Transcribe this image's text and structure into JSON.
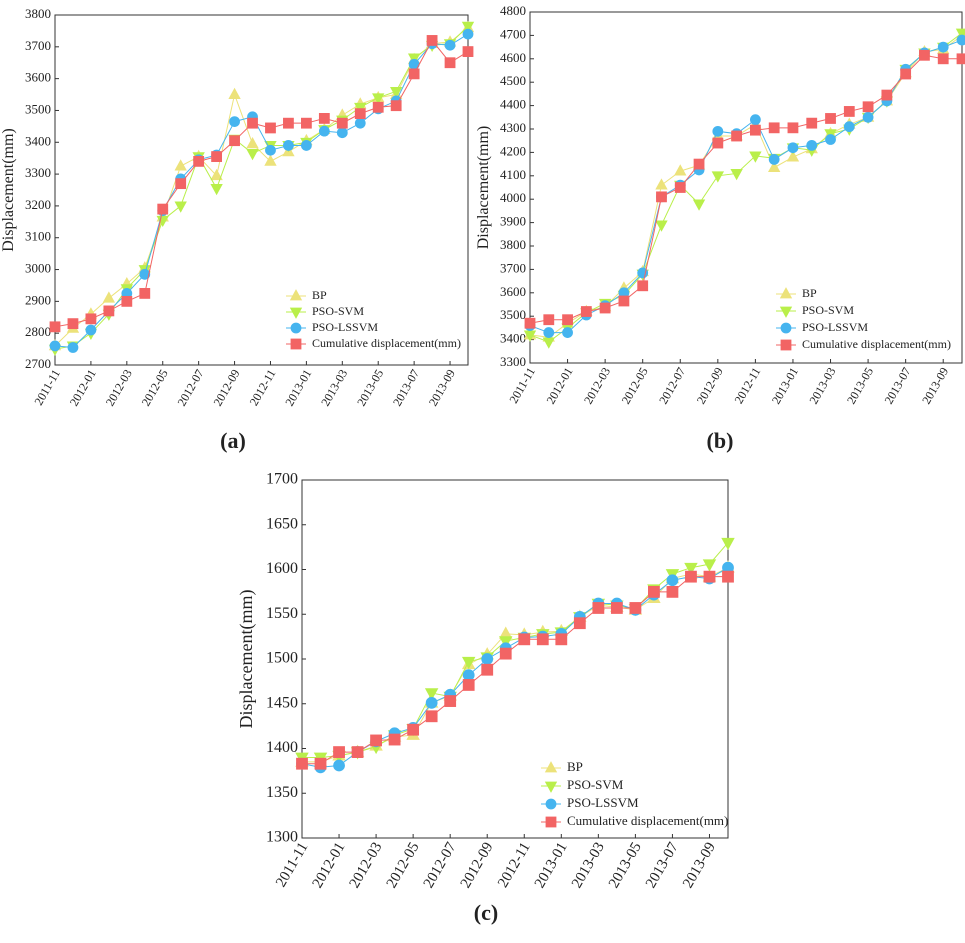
{
  "chart_data": [
    {
      "type": "line",
      "caption": "(a)",
      "y_label": "Displacement(mm)",
      "categories": [
        "2011-11",
        null,
        "2012-01",
        null,
        "2012-03",
        null,
        "2012-05",
        null,
        "2012-07",
        null,
        "2012-09",
        null,
        "2012-11",
        null,
        "2013-01",
        null,
        "2013-03",
        null,
        "2013-05",
        null,
        "2013-07",
        null,
        "2013-09",
        null
      ],
      "ylim": [
        2700,
        3800
      ],
      "yticks": [
        2700,
        2800,
        2900,
        3000,
        3100,
        3200,
        3300,
        3400,
        3500,
        3600,
        3700,
        3800
      ],
      "legend": "lower right",
      "series": [
        {
          "name": "BP",
          "color": "#ece27a",
          "marker": "triangle-up",
          "values": [
            2760,
            2815,
            2860,
            2910,
            2955,
            3005,
            3165,
            3325,
            3355,
            3295,
            3550,
            3395,
            3340,
            3370,
            3405,
            3440,
            3485,
            3520,
            3540,
            3550,
            3660,
            3710,
            3715,
            3760
          ]
        },
        {
          "name": "PSO-SVM",
          "color": "#b9ef4a",
          "marker": "triangle-down",
          "values": [
            2750,
            2760,
            2800,
            2860,
            2940,
            3000,
            3155,
            3200,
            3355,
            3255,
            3410,
            3365,
            3390,
            3390,
            3400,
            3440,
            3470,
            3510,
            3540,
            3560,
            3665,
            3705,
            3710,
            3765
          ]
        },
        {
          "name": "PSO-LSSVM",
          "color": "#45b4ef",
          "marker": "circle",
          "values": [
            2760,
            2755,
            2810,
            2870,
            2925,
            2985,
            3185,
            3285,
            3345,
            3360,
            3465,
            3480,
            3375,
            3390,
            3390,
            3435,
            3430,
            3460,
            3505,
            3530,
            3645,
            3710,
            3705,
            3740
          ]
        },
        {
          "name": "Cumulative displacement(mm)",
          "color": "#f26464",
          "marker": "square",
          "values": [
            2820,
            2830,
            2845,
            2870,
            2900,
            2925,
            3190,
            3270,
            3340,
            3355,
            3405,
            3460,
            3445,
            3460,
            3460,
            3475,
            3460,
            3490,
            3510,
            3515,
            3615,
            3720,
            3650,
            3685
          ]
        }
      ]
    },
    {
      "type": "line",
      "caption": "(b)",
      "y_label": "Displacement(mm)",
      "categories": [
        "2011-11",
        null,
        "2012-01",
        null,
        "2012-03",
        null,
        "2012-05",
        null,
        "2012-07",
        null,
        "2012-09",
        null,
        "2012-11",
        null,
        "2013-01",
        null,
        "2013-03",
        null,
        "2013-05",
        null,
        "2013-07",
        null,
        "2013-09",
        null
      ],
      "ylim": [
        3300,
        4800
      ],
      "yticks": [
        3300,
        3400,
        3500,
        3600,
        3700,
        3800,
        3900,
        4000,
        4100,
        4200,
        4300,
        4400,
        4500,
        4600,
        4700,
        4800
      ],
      "legend": "lower right",
      "series": [
        {
          "name": "BP",
          "color": "#ece27a",
          "marker": "triangle-up",
          "values": [
            3420,
            3410,
            3470,
            3520,
            3540,
            3620,
            3690,
            4060,
            4120,
            4145,
            4270,
            4270,
            4320,
            4135,
            4180,
            4215,
            4280,
            4320,
            4350,
            4420,
            4540,
            4630,
            4640,
            4700
          ]
        },
        {
          "name": "PSO-SVM",
          "color": "#b9ef4a",
          "marker": "triangle-down",
          "values": [
            3420,
            3390,
            3450,
            3515,
            3555,
            3590,
            3680,
            3890,
            4060,
            3980,
            4100,
            4110,
            4185,
            4175,
            4220,
            4210,
            4280,
            4300,
            4350,
            4420,
            4555,
            4625,
            4650,
            4710
          ]
        },
        {
          "name": "PSO-LSSVM",
          "color": "#45b4ef",
          "marker": "circle",
          "values": [
            3460,
            3430,
            3430,
            3505,
            3545,
            3600,
            3685,
            4010,
            4060,
            4125,
            4290,
            4280,
            4340,
            4170,
            4220,
            4230,
            4255,
            4310,
            4350,
            4420,
            4555,
            4625,
            4650,
            4680
          ]
        },
        {
          "name": "Cumulative displacement(mm)",
          "color": "#f26464",
          "marker": "square",
          "values": [
            3470,
            3485,
            3485,
            3520,
            3535,
            3565,
            3630,
            4010,
            4050,
            4150,
            4240,
            4270,
            4295,
            4305,
            4305,
            4325,
            4345,
            4375,
            4395,
            4445,
            4535,
            4615,
            4600,
            4600
          ]
        }
      ]
    },
    {
      "type": "line",
      "caption": "(c)",
      "y_label": "Displacement(mm)",
      "categories": [
        "2011-11",
        null,
        "2012-01",
        null,
        "2012-03",
        null,
        "2012-05",
        null,
        "2012-07",
        null,
        "2012-09",
        null,
        "2012-11",
        null,
        "2013-01",
        null,
        "2013-03",
        null,
        "2013-05",
        null,
        "2013-07",
        null,
        "2013-09",
        null
      ],
      "ylim": [
        1300,
        1700
      ],
      "yticks": [
        1300,
        1350,
        1400,
        1450,
        1500,
        1550,
        1600,
        1650,
        1700
      ],
      "legend": "lower right",
      "series": [
        {
          "name": "BP",
          "color": "#ece27a",
          "marker": "triangle-up",
          "values": [
            1385,
            1385,
            1392,
            1396,
            1403,
            1413,
            1415,
            1451,
            1459,
            1494,
            1505,
            1528,
            1527,
            1530,
            1531,
            1547,
            1560,
            1558,
            1555,
            1568,
            1590,
            1595,
            1592,
            1602
          ]
        },
        {
          "name": "PSO-SVM",
          "color": "#b9ef4a",
          "marker": "triangle-down",
          "values": [
            1390,
            1390,
            1392,
            1396,
            1402,
            1415,
            1422,
            1462,
            1458,
            1497,
            1502,
            1520,
            1524,
            1528,
            1530,
            1547,
            1562,
            1560,
            1556,
            1578,
            1595,
            1602,
            1606,
            1630
          ]
        },
        {
          "name": "PSO-LSSVM",
          "color": "#45b4ef",
          "marker": "circle",
          "values": [
            1383,
            1379,
            1381,
            1396,
            1408,
            1417,
            1423,
            1451,
            1460,
            1482,
            1500,
            1512,
            1524,
            1525,
            1528,
            1547,
            1562,
            1562,
            1555,
            1572,
            1588,
            1592,
            1590,
            1602
          ]
        },
        {
          "name": "Cumulative displacement(mm)",
          "color": "#f26464",
          "marker": "square",
          "values": [
            1383,
            1383,
            1396,
            1396,
            1409,
            1410,
            1421,
            1436,
            1453,
            1471,
            1488,
            1506,
            1522,
            1522,
            1522,
            1540,
            1557,
            1557,
            1557,
            1575,
            1575,
            1592,
            1592,
            1592
          ]
        }
      ]
    }
  ]
}
